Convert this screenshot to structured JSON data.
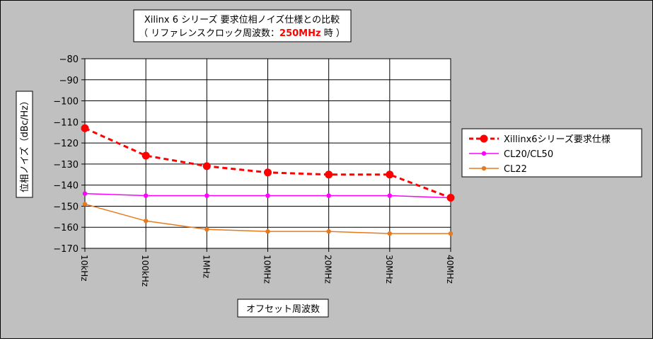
{
  "chart_data": {
    "type": "line",
    "title_line1": "Xilinx 6 シリーズ 要求位相ノイズ仕様との比較",
    "title_line2_prefix": "（ リファレンスクロック周波数：",
    "title_line2_highlight": "250MHz",
    "title_line2_suffix": " 時 ）",
    "xlabel": "オフセット周波数",
    "ylabel": "位相ノイズ（dBc/Hz）",
    "categories": [
      "10kHz",
      "100kHz",
      "1MHz",
      "10MHz",
      "20MHz",
      "30MHz",
      "40MHz"
    ],
    "ylim": [
      -170,
      -80
    ],
    "yticks": [
      -80,
      -90,
      -100,
      -110,
      -120,
      -130,
      -140,
      -150,
      -160,
      -170
    ],
    "ytick_labels": [
      "−80",
      "−90",
      "−100",
      "−110",
      "−120",
      "−130",
      "−140",
      "−150",
      "−160",
      "−170"
    ],
    "grid": true,
    "legend_position": "right",
    "series": [
      {
        "name": "Xillinx6シリーズ要求仕様",
        "values": [
          -113,
          -126,
          -131,
          -134,
          -135,
          -135,
          -146
        ],
        "color": "#ff0000",
        "style": "dashed"
      },
      {
        "name": "CL20/CL50",
        "values": [
          -144,
          -145,
          -145,
          -145,
          -145,
          -145,
          -146
        ],
        "color": "#ff00ff",
        "style": "solid"
      },
      {
        "name": "CL22",
        "values": [
          -149,
          -157,
          -161,
          -162,
          -162,
          -163,
          -163
        ],
        "color": "#e87a1e",
        "style": "solid"
      }
    ]
  }
}
